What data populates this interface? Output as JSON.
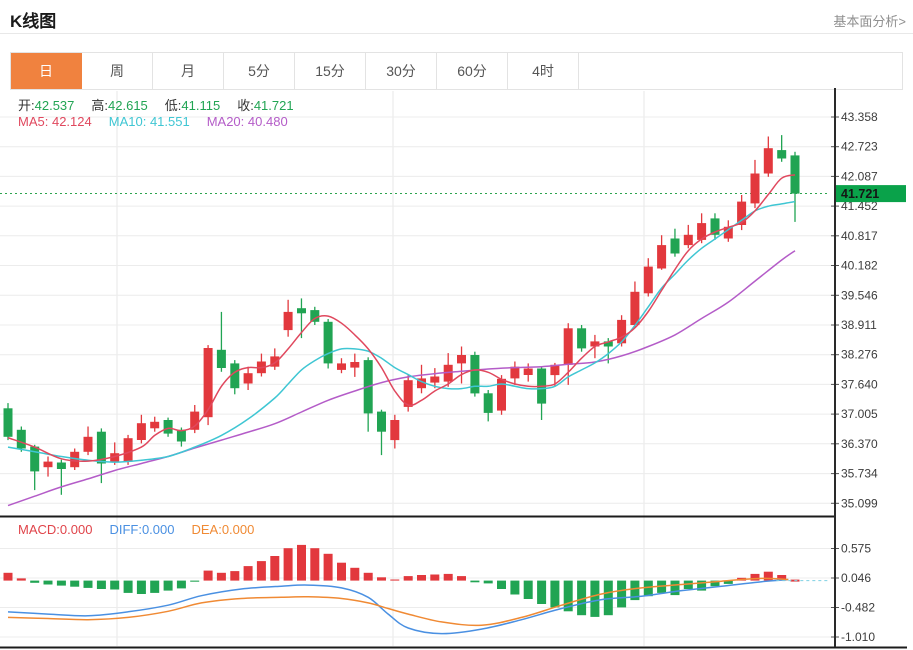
{
  "header": {
    "title": "K线图",
    "link": "基本面分析>"
  },
  "tabs": {
    "items": [
      {
        "label": "日",
        "active": true
      },
      {
        "label": "周",
        "active": false
      },
      {
        "label": "月",
        "active": false
      },
      {
        "label": "5分",
        "active": false
      },
      {
        "label": "15分",
        "active": false
      },
      {
        "label": "30分",
        "active": false
      },
      {
        "label": "60分",
        "active": false
      },
      {
        "label": "4时",
        "active": false
      }
    ]
  },
  "legend": {
    "ohlc": [
      {
        "label": "开:",
        "value": "42.537"
      },
      {
        "label": "高:",
        "value": "42.615"
      },
      {
        "label": "低:",
        "value": "41.115"
      },
      {
        "label": "收:",
        "value": "41.721"
      }
    ],
    "ma": [
      {
        "label": "MA5:",
        "value": "42.124"
      },
      {
        "label": "MA10:",
        "value": "41.551"
      },
      {
        "label": "MA20:",
        "value": "40.480"
      }
    ],
    "macd": [
      {
        "label": "MACD:",
        "value": "0.000"
      },
      {
        "label": "DIFF:",
        "value": "0.000"
      },
      {
        "label": "DEA:",
        "value": "0.000"
      }
    ]
  },
  "colors": {
    "up": "#e2383d",
    "down": "#21a453",
    "ma5": "#e0485e",
    "ma10": "#3fc6d3",
    "ma20": "#b45cc8",
    "diff": "#4a90e2",
    "dea": "#f08a34",
    "grid": "#ececec",
    "vgrid": "#e7e7e7",
    "axis_line": "#2a2a2a",
    "tick": "#555555",
    "label": "#3c3c3c",
    "current_line": "#2ca44e",
    "tag_bg": "#0aa24a",
    "tag_text": "#151515",
    "zero_dash": "#7fd0e2"
  },
  "chart_data": {
    "type": "candlestick+macd",
    "title": "K线图 daily candlestick with MA5/MA10/MA20 and MACD",
    "price_axis": {
      "ticks": [
        43.358,
        42.723,
        42.087,
        41.452,
        40.817,
        40.182,
        39.546,
        38.911,
        38.276,
        37.64,
        37.005,
        36.37,
        35.734,
        35.099
      ],
      "current_price": 41.721
    },
    "macd_axis": {
      "ticks": [
        0.575,
        0.046,
        -0.482,
        -1.01
      ]
    },
    "last_candle": {
      "open": 42.537,
      "high": 42.615,
      "low": 41.115,
      "close": 41.721
    },
    "vertical_gridlines_x": [
      117,
      393,
      644
    ],
    "candles": [
      [
        37.13,
        37.24,
        36.45,
        36.52
      ],
      [
        36.67,
        36.74,
        36.2,
        36.27
      ],
      [
        36.31,
        36.35,
        35.38,
        35.78
      ],
      [
        35.87,
        36.1,
        35.67,
        35.99
      ],
      [
        35.97,
        36.03,
        35.28,
        35.83
      ],
      [
        35.87,
        36.27,
        35.81,
        36.2
      ],
      [
        36.2,
        36.74,
        36.13,
        36.52
      ],
      [
        36.63,
        36.7,
        35.53,
        35.95
      ],
      [
        35.99,
        36.4,
        35.92,
        36.17
      ],
      [
        35.99,
        36.56,
        35.92,
        36.49
      ],
      [
        36.45,
        36.99,
        36.38,
        36.81
      ],
      [
        36.7,
        36.95,
        36.63,
        36.84
      ],
      [
        36.88,
        36.93,
        36.52,
        36.59
      ],
      [
        36.67,
        36.72,
        36.31,
        36.42
      ],
      [
        36.67,
        37.2,
        36.6,
        37.06
      ],
      [
        36.94,
        38.48,
        36.77,
        38.42
      ],
      [
        38.38,
        39.19,
        37.91,
        37.99
      ],
      [
        38.09,
        38.16,
        37.43,
        37.56
      ],
      [
        37.66,
        38.02,
        37.52,
        37.88
      ],
      [
        37.88,
        38.3,
        37.81,
        38.13
      ],
      [
        38.02,
        38.41,
        37.95,
        38.24
      ],
      [
        38.8,
        39.45,
        38.66,
        39.19
      ],
      [
        39.27,
        39.48,
        38.63,
        39.16
      ],
      [
        39.23,
        39.3,
        38.91,
        38.98
      ],
      [
        38.98,
        39.04,
        37.98,
        38.09
      ],
      [
        37.95,
        38.2,
        37.88,
        38.09
      ],
      [
        38.0,
        38.3,
        37.8,
        38.12
      ],
      [
        38.16,
        38.22,
        36.63,
        37.02
      ],
      [
        37.06,
        37.1,
        36.13,
        36.63
      ],
      [
        36.45,
        36.99,
        36.27,
        36.88
      ],
      [
        37.16,
        37.84,
        37.06,
        37.73
      ],
      [
        37.56,
        38.06,
        37.45,
        37.77
      ],
      [
        37.68,
        37.99,
        37.56,
        37.81
      ],
      [
        37.7,
        38.31,
        37.59,
        38.06
      ],
      [
        38.09,
        38.45,
        37.66,
        38.27
      ],
      [
        38.27,
        38.34,
        37.38,
        37.45
      ],
      [
        37.45,
        37.52,
        36.85,
        37.03
      ],
      [
        37.08,
        37.84,
        36.99,
        37.76
      ],
      [
        37.77,
        38.13,
        37.63,
        38.02
      ],
      [
        37.84,
        38.09,
        37.7,
        37.98
      ],
      [
        37.98,
        38.02,
        36.88,
        37.23
      ],
      [
        37.84,
        38.1,
        37.59,
        38.06
      ],
      [
        38.06,
        38.95,
        37.63,
        38.84
      ],
      [
        38.84,
        38.91,
        38.34,
        38.41
      ],
      [
        38.45,
        38.7,
        38.2,
        38.56
      ],
      [
        38.56,
        38.63,
        38.09,
        38.45
      ],
      [
        38.52,
        39.12,
        38.45,
        39.02
      ],
      [
        38.91,
        39.84,
        38.85,
        39.62
      ],
      [
        39.59,
        40.34,
        39.52,
        40.16
      ],
      [
        40.12,
        40.83,
        40.09,
        40.62
      ],
      [
        40.76,
        40.97,
        40.37,
        40.44
      ],
      [
        40.62,
        41.05,
        40.55,
        40.84
      ],
      [
        40.73,
        41.3,
        40.66,
        41.09
      ],
      [
        41.19,
        41.3,
        40.73,
        40.84
      ],
      [
        40.76,
        41.15,
        40.69,
        41.01
      ],
      [
        41.05,
        41.69,
        40.94,
        41.55
      ],
      [
        41.51,
        42.44,
        41.41,
        42.15
      ],
      [
        42.15,
        42.94,
        42.08,
        42.69
      ],
      [
        42.65,
        42.97,
        42.4,
        42.47
      ],
      [
        42.537,
        42.615,
        41.115,
        41.721
      ]
    ],
    "ma5_points": [
      [
        0,
        36.5
      ],
      [
        2,
        36.3
      ],
      [
        4,
        36.05
      ],
      [
        6,
        36.0
      ],
      [
        8,
        36.1
      ],
      [
        10,
        36.3
      ],
      [
        11,
        36.55
      ],
      [
        12,
        36.7
      ],
      [
        13,
        36.65
      ],
      [
        14,
        36.75
      ],
      [
        15,
        37.1
      ],
      [
        16,
        37.6
      ],
      [
        17,
        37.9
      ],
      [
        18,
        38.0
      ],
      [
        19,
        38.0
      ],
      [
        20,
        38.1
      ],
      [
        21,
        38.4
      ],
      [
        22,
        38.75
      ],
      [
        23,
        39.05
      ],
      [
        24,
        39.1
      ],
      [
        25,
        38.95
      ],
      [
        26,
        38.7
      ],
      [
        27,
        38.4
      ],
      [
        28,
        38.0
      ],
      [
        29,
        37.5
      ],
      [
        30,
        37.2
      ],
      [
        31,
        37.3
      ],
      [
        32,
        37.5
      ],
      [
        33,
        37.65
      ],
      [
        34,
        37.85
      ],
      [
        35,
        37.95
      ],
      [
        36,
        37.9
      ],
      [
        37,
        37.75
      ],
      [
        38,
        37.65
      ],
      [
        39,
        37.6
      ],
      [
        40,
        37.6
      ],
      [
        41,
        37.65
      ],
      [
        42,
        37.9
      ],
      [
        43,
        38.2
      ],
      [
        44,
        38.45
      ],
      [
        45,
        38.55
      ],
      [
        46,
        38.65
      ],
      [
        47,
        38.85
      ],
      [
        48,
        39.2
      ],
      [
        49,
        39.65
      ],
      [
        50,
        40.1
      ],
      [
        51,
        40.5
      ],
      [
        52,
        40.75
      ],
      [
        53,
        40.9
      ],
      [
        54,
        41.0
      ],
      [
        55,
        41.1
      ],
      [
        56,
        41.35
      ],
      [
        57,
        41.7
      ],
      [
        58,
        42.05
      ],
      [
        59,
        42.12
      ]
    ],
    "ma10_points": [
      [
        0,
        36.3
      ],
      [
        2,
        36.2
      ],
      [
        4,
        36.1
      ],
      [
        6,
        36.02
      ],
      [
        8,
        35.98
      ],
      [
        10,
        36.02
      ],
      [
        12,
        36.1
      ],
      [
        14,
        36.3
      ],
      [
        16,
        36.55
      ],
      [
        18,
        36.9
      ],
      [
        20,
        37.35
      ],
      [
        21,
        37.65
      ],
      [
        22,
        37.95
      ],
      [
        23,
        38.15
      ],
      [
        24,
        38.3
      ],
      [
        25,
        38.4
      ],
      [
        26,
        38.4
      ],
      [
        27,
        38.35
      ],
      [
        28,
        38.2
      ],
      [
        29,
        38.0
      ],
      [
        30,
        37.85
      ],
      [
        31,
        37.7
      ],
      [
        32,
        37.6
      ],
      [
        33,
        37.55
      ],
      [
        34,
        37.55
      ],
      [
        35,
        37.6
      ],
      [
        36,
        37.6
      ],
      [
        37,
        37.65
      ],
      [
        38,
        37.6
      ],
      [
        39,
        37.55
      ],
      [
        40,
        37.55
      ],
      [
        41,
        37.6
      ],
      [
        42,
        37.8
      ],
      [
        43,
        37.95
      ],
      [
        44,
        38.1
      ],
      [
        45,
        38.3
      ],
      [
        46,
        38.55
      ],
      [
        47,
        38.9
      ],
      [
        48,
        39.3
      ],
      [
        49,
        39.7
      ],
      [
        50,
        40.0
      ],
      [
        51,
        40.3
      ],
      [
        52,
        40.55
      ],
      [
        53,
        40.75
      ],
      [
        54,
        40.95
      ],
      [
        55,
        41.15
      ],
      [
        56,
        41.35
      ],
      [
        57,
        41.45
      ],
      [
        58,
        41.5
      ],
      [
        59,
        41.55
      ]
    ],
    "ma20_points": [
      [
        0,
        35.05
      ],
      [
        2,
        35.25
      ],
      [
        4,
        35.45
      ],
      [
        6,
        35.62
      ],
      [
        8,
        35.8
      ],
      [
        10,
        35.95
      ],
      [
        12,
        36.1
      ],
      [
        14,
        36.28
      ],
      [
        16,
        36.45
      ],
      [
        18,
        36.62
      ],
      [
        20,
        36.8
      ],
      [
        22,
        37.05
      ],
      [
        24,
        37.3
      ],
      [
        26,
        37.5
      ],
      [
        28,
        37.68
      ],
      [
        30,
        37.8
      ],
      [
        32,
        37.87
      ],
      [
        34,
        37.92
      ],
      [
        36,
        37.97
      ],
      [
        38,
        38.0
      ],
      [
        40,
        38.02
      ],
      [
        42,
        38.07
      ],
      [
        44,
        38.12
      ],
      [
        46,
        38.25
      ],
      [
        48,
        38.45
      ],
      [
        50,
        38.7
      ],
      [
        52,
        39.05
      ],
      [
        54,
        39.4
      ],
      [
        56,
        39.85
      ],
      [
        58,
        40.3
      ],
      [
        59,
        40.5
      ]
    ],
    "macd_hist": [
      0.14,
      0.04,
      -0.04,
      -0.07,
      -0.09,
      -0.11,
      -0.13,
      -0.15,
      -0.16,
      -0.22,
      -0.24,
      -0.22,
      -0.18,
      -0.14,
      -0.02,
      0.18,
      0.14,
      0.17,
      0.26,
      0.35,
      0.44,
      0.58,
      0.64,
      0.58,
      0.48,
      0.32,
      0.23,
      0.14,
      0.06,
      0.02,
      0.08,
      0.1,
      0.11,
      0.12,
      0.08,
      -0.03,
      -0.05,
      -0.15,
      -0.25,
      -0.33,
      -0.42,
      -0.48,
      -0.55,
      -0.62,
      -0.65,
      -0.62,
      -0.48,
      -0.35,
      -0.28,
      -0.22,
      -0.26,
      -0.15,
      -0.18,
      -0.1,
      -0.06,
      0.05,
      0.12,
      0.16,
      0.1,
      0.005
    ],
    "diff_points": [
      [
        0,
        -0.56
      ],
      [
        3,
        -0.6
      ],
      [
        6,
        -0.63
      ],
      [
        9,
        -0.56
      ],
      [
        12,
        -0.44
      ],
      [
        14.5,
        -0.27
      ],
      [
        17.5,
        -0.15
      ],
      [
        20.5,
        -0.1
      ],
      [
        22.5,
        -0.08
      ],
      [
        25,
        -0.13
      ],
      [
        27,
        -0.3
      ],
      [
        28.5,
        -0.6
      ],
      [
        30,
        -0.85
      ],
      [
        32.5,
        -0.95
      ],
      [
        35.5,
        -0.87
      ],
      [
        38.5,
        -0.7
      ],
      [
        41.5,
        -0.5
      ],
      [
        44.5,
        -0.34
      ],
      [
        47.5,
        -0.28
      ],
      [
        50.5,
        -0.18
      ],
      [
        53.5,
        -0.1
      ],
      [
        56.5,
        -0.02
      ],
      [
        58.5,
        0.02
      ]
    ],
    "dea_points": [
      [
        0,
        -0.66
      ],
      [
        3,
        -0.68
      ],
      [
        6,
        -0.7
      ],
      [
        9,
        -0.66
      ],
      [
        12,
        -0.55
      ],
      [
        14.5,
        -0.4
      ],
      [
        17.5,
        -0.32
      ],
      [
        20.5,
        -0.3
      ],
      [
        22.5,
        -0.29
      ],
      [
        25,
        -0.32
      ],
      [
        27,
        -0.4
      ],
      [
        28.5,
        -0.5
      ],
      [
        30,
        -0.6
      ],
      [
        32.5,
        -0.74
      ],
      [
        35.5,
        -0.8
      ],
      [
        38.5,
        -0.66
      ],
      [
        41.5,
        -0.44
      ],
      [
        44.5,
        -0.24
      ],
      [
        47.5,
        -0.13
      ],
      [
        50.5,
        -0.07
      ],
      [
        53.5,
        -0.01
      ],
      [
        56.5,
        0.04
      ],
      [
        58.5,
        0.02
      ]
    ]
  }
}
